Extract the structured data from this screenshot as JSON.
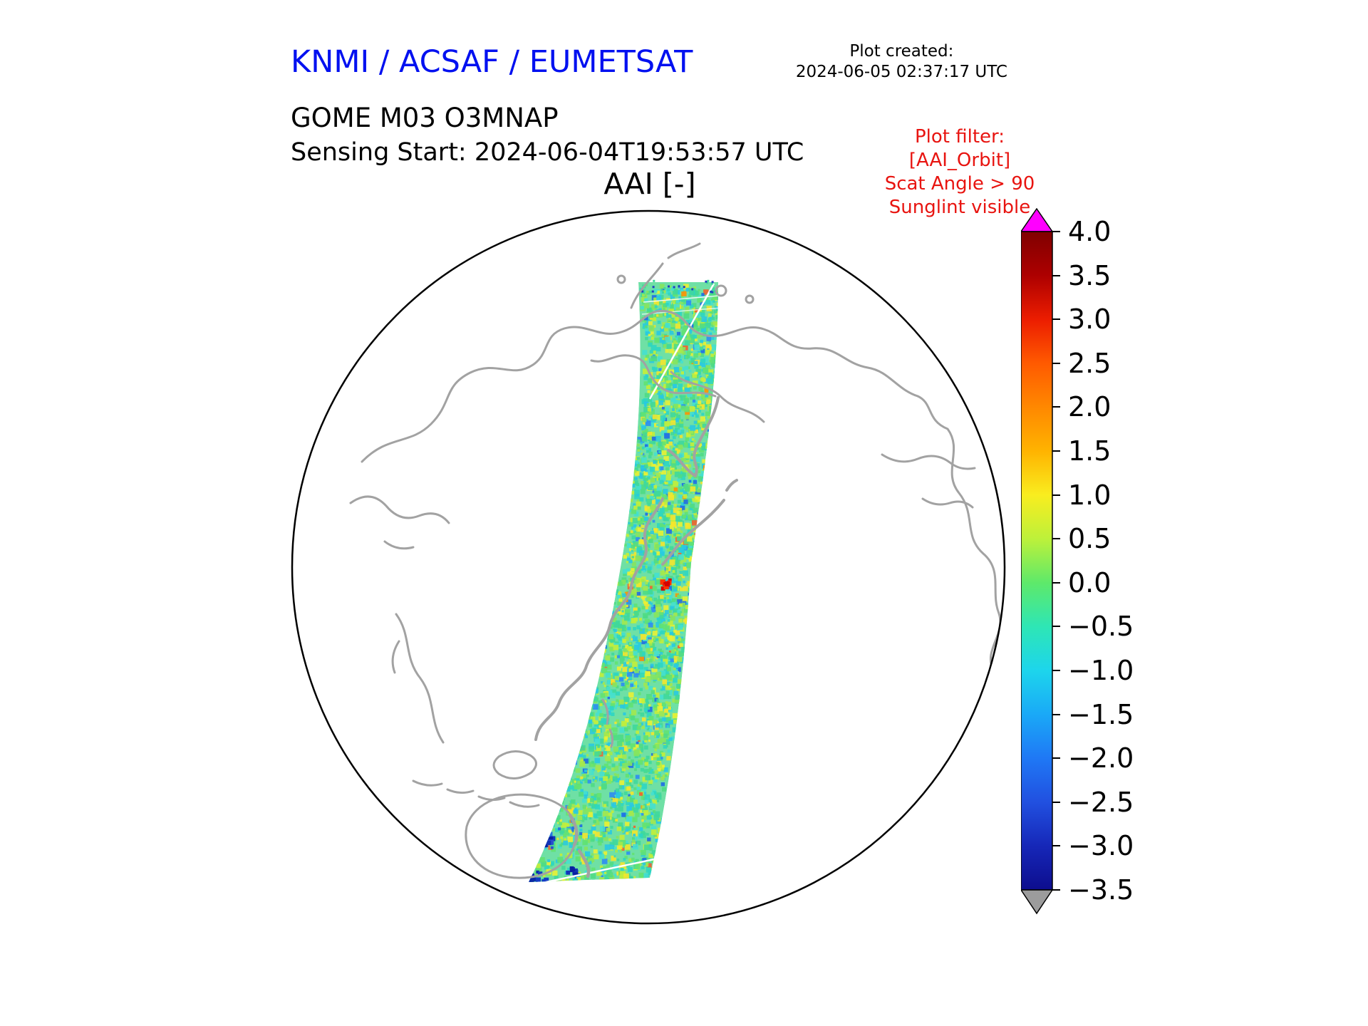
{
  "colors": {
    "agency_blue": "#0010f0",
    "filter_red": "#e81410",
    "coastline_gray": "#a2a2a2",
    "swath_base_green": "#6fe0a5"
  },
  "header": {
    "agency": "KNMI / ACSAF / EUMETSAT",
    "plot_created_label": "Plot created:",
    "plot_created_time": "2024-06-05 02:37:17 UTC",
    "product": "GOME M03 O3MNAP",
    "sensing_start": "Sensing Start: 2024-06-04T19:53:57 UTC",
    "plot_title": "AAI [-]",
    "filter_lines": [
      "Plot filter:",
      "[AAI_Orbit]",
      "Scat Angle > 90",
      "Sunglint visible"
    ]
  },
  "chart_data": {
    "type": "heatmap",
    "title": "AAI [-]",
    "product": "GOME M03 O3MNAP",
    "sensing_start_utc": "2024-06-04T19:53:57 UTC",
    "plot_created_utc": "2024-06-05 02:37:17 UTC",
    "projection": "orthographic-globe",
    "colorbar": {
      "min": -3.5,
      "max": 4.0,
      "tick_values": [
        4.0,
        3.5,
        3.0,
        2.5,
        2.0,
        1.5,
        1.0,
        0.5,
        0.0,
        -0.5,
        -1.0,
        -1.5,
        -2.0,
        -2.5,
        -3.0,
        -3.5
      ],
      "tick_labels": [
        "4.0",
        "3.5",
        "3.0",
        "2.5",
        "2.0",
        "1.5",
        "1.0",
        "0.5",
        "0.0",
        "−0.5",
        "−1.0",
        "−1.5",
        "−2.0",
        "−2.5",
        "−3.0",
        "−3.5"
      ],
      "over_color": "#ff00ff",
      "under_color": "#9c9c9c",
      "stops": [
        {
          "value": 4.0,
          "color": "#800000"
        },
        {
          "value": 3.5,
          "color": "#ad0000"
        },
        {
          "value": 3.0,
          "color": "#ec1d00"
        },
        {
          "value": 2.5,
          "color": "#ff5a00"
        },
        {
          "value": 2.0,
          "color": "#ff8800"
        },
        {
          "value": 1.5,
          "color": "#ffb300"
        },
        {
          "value": 1.0,
          "color": "#f9ed1f"
        },
        {
          "value": 0.5,
          "color": "#bdf13a"
        },
        {
          "value": 0.0,
          "color": "#5ee96a"
        },
        {
          "value": -0.5,
          "color": "#2ee6b5"
        },
        {
          "value": -1.0,
          "color": "#1dd5ec"
        },
        {
          "value": -1.5,
          "color": "#1aa9f7"
        },
        {
          "value": -2.0,
          "color": "#1f78f5"
        },
        {
          "value": -2.5,
          "color": "#2150e0"
        },
        {
          "value": -3.0,
          "color": "#1627b8"
        },
        {
          "value": -3.5,
          "color": "#0d0d8e"
        }
      ]
    },
    "swath": {
      "description": "Single satellite orbit swath running from the Arctic south-southwest across the Pacific toward New Zealand",
      "typical_range": [
        -1.0,
        1.0
      ],
      "dominant_colors": [
        "green",
        "cyan",
        "yellow-green"
      ],
      "features": [
        {
          "name": "elevated-aai-spot",
          "approx_value": 3.0,
          "note": "small red patch near swath centre"
        },
        {
          "name": "low-aai-patches",
          "approx_value": -2.5,
          "note": "dark blue patches near southern end of swath"
        }
      ],
      "filters_applied": [
        "AAI_Orbit",
        "Scat Angle > 90",
        "Sunglint visible"
      ]
    }
  }
}
